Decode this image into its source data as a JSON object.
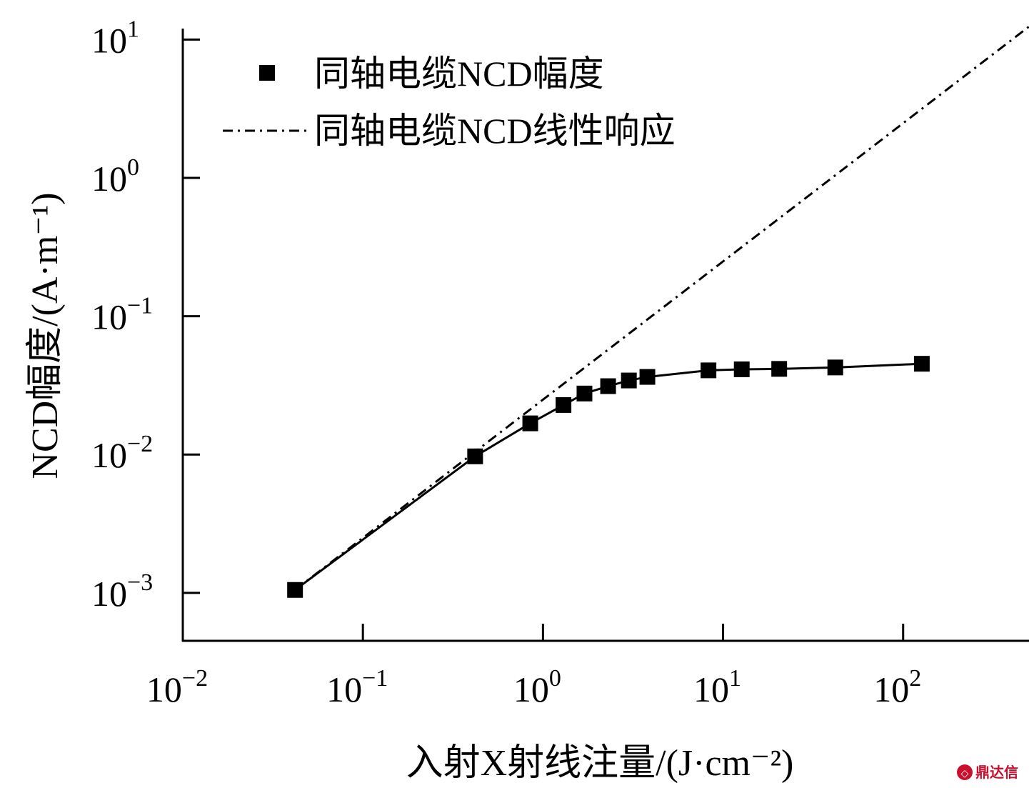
{
  "chart_data": {
    "type": "line",
    "xscale": "log",
    "yscale": "log",
    "xlim": [
      0.01,
      500
    ],
    "ylim": [
      0.00045,
      12
    ],
    "xlabel": "入射X射线注量/(J·cm⁻²)",
    "ylabel": "NCD幅度/(A·m⁻¹)",
    "xticks": [
      {
        "value": 0.01,
        "base": "10",
        "exp": "−2"
      },
      {
        "value": 0.1,
        "base": "10",
        "exp": "−1"
      },
      {
        "value": 1,
        "base": "10",
        "exp": "0"
      },
      {
        "value": 10,
        "base": "10",
        "exp": "1"
      },
      {
        "value": 100,
        "base": "10",
        "exp": "2"
      }
    ],
    "yticks": [
      {
        "value": 0.001,
        "base": "10",
        "exp": "−3"
      },
      {
        "value": 0.01,
        "base": "10",
        "exp": "−2"
      },
      {
        "value": 0.1,
        "base": "10",
        "exp": "−1"
      },
      {
        "value": 1,
        "base": "10",
        "exp": "0"
      },
      {
        "value": 10,
        "base": "10",
        "exp": "1"
      }
    ],
    "series": [
      {
        "name": "同轴电缆NCD幅度",
        "style": "solid-line-square-markers",
        "color": "#000000",
        "x": [
          0.042,
          0.42,
          0.85,
          1.3,
          1.7,
          2.3,
          3.0,
          3.8,
          8.3,
          12.7,
          20.5,
          42,
          127
        ],
        "y": [
          0.00105,
          0.0097,
          0.0168,
          0.0228,
          0.0276,
          0.0312,
          0.0343,
          0.0364,
          0.0406,
          0.0413,
          0.0416,
          0.0426,
          0.0453
        ]
      },
      {
        "name": "同轴电缆NCD线性响应",
        "style": "dash-dot",
        "color": "#000000",
        "x": [
          0.042,
          500
        ],
        "y": [
          0.00105,
          12.4
        ]
      }
    ],
    "legend": {
      "position": "top-left"
    },
    "grid": false
  },
  "watermark": "鼎达信",
  "watermark_icon": "logo-circle-icon"
}
